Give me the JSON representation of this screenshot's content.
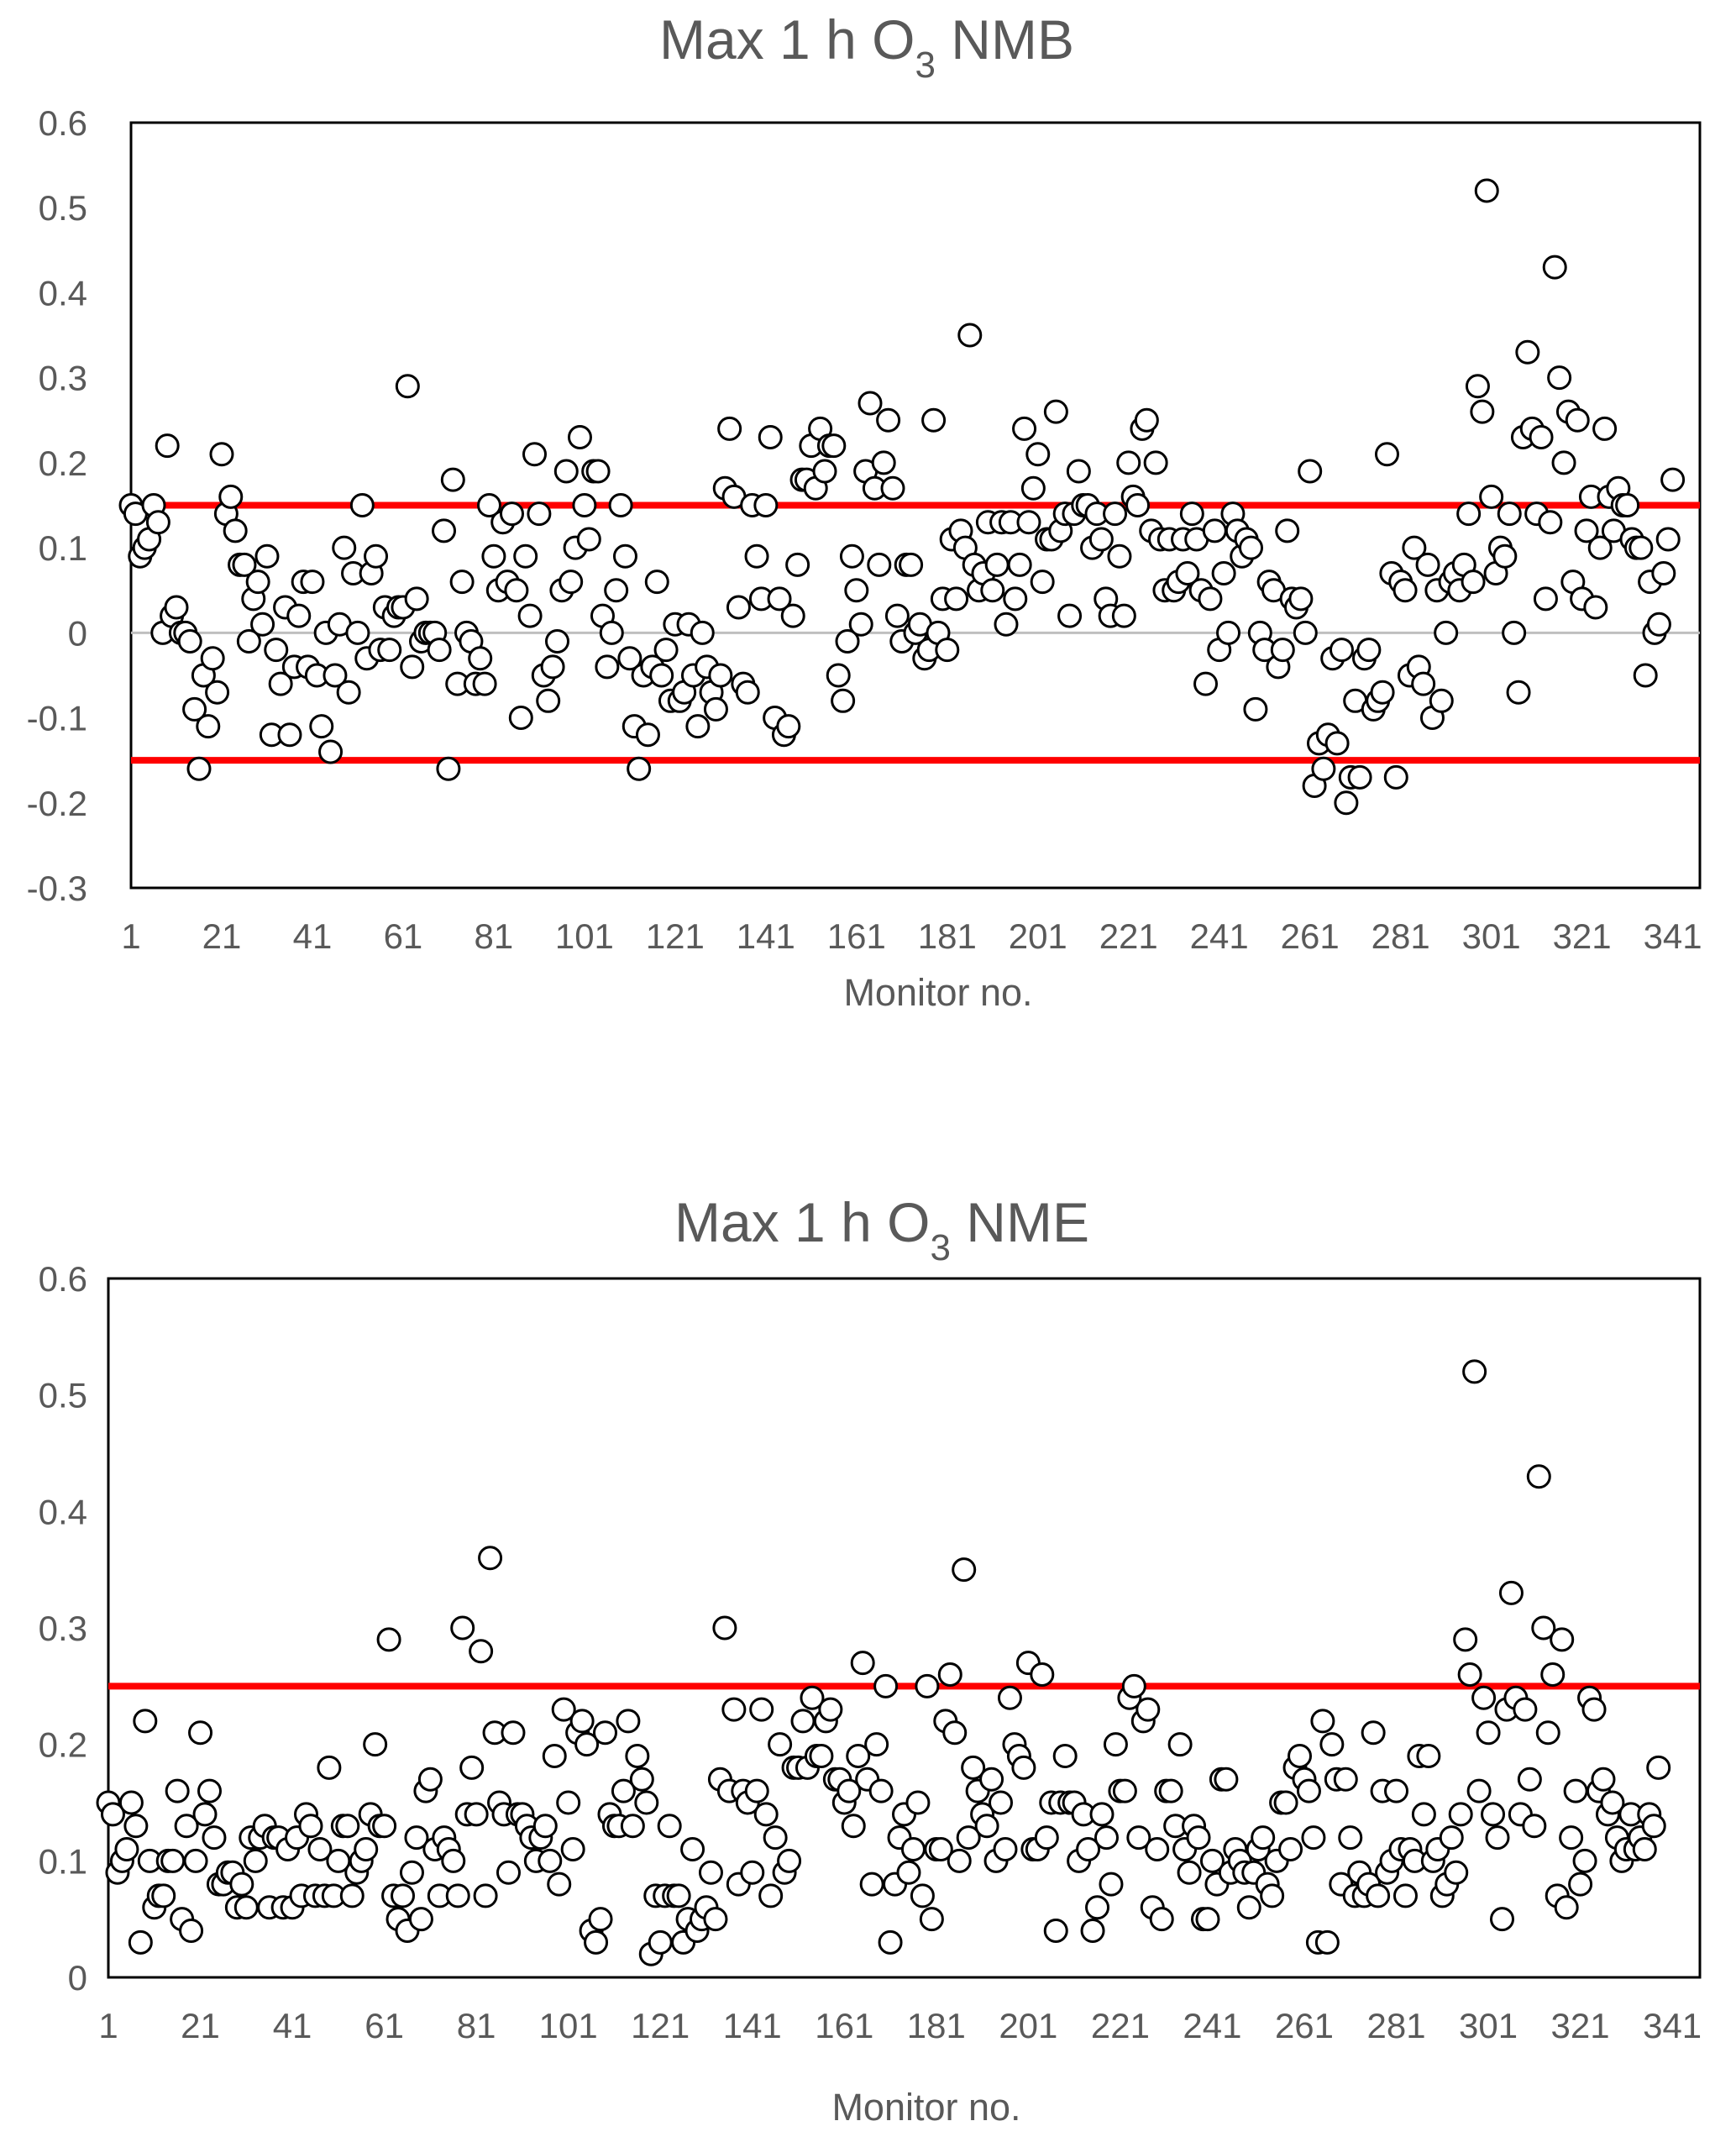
{
  "chart_data": [
    {
      "type": "scatter",
      "title": "Max 1 h O",
      "title_subscript": "3",
      "title_suffix": " NMB",
      "xlabel": "Monitor no.",
      "ylabel": "",
      "xlim": [
        1,
        347
      ],
      "ylim": [
        -0.3,
        0.6
      ],
      "x_ticks": [
        "1",
        "21",
        "41",
        "61",
        "81",
        "101",
        "121",
        "141",
        "161",
        "181",
        "201",
        "221",
        "241",
        "261",
        "281",
        "301",
        "321",
        "341"
      ],
      "y_ticks": [
        "-0.3",
        "-0.2",
        "-0.1",
        "0",
        "0.1",
        "0.2",
        "0.3",
        "0.4",
        "0.5",
        "0.6"
      ],
      "reference_lines": [
        0.15,
        -0.15
      ],
      "reference_color": "#ff0000",
      "zero_line": true,
      "grid": false,
      "marker": "open-circle",
      "y": [
        0.15,
        0.14,
        0.09,
        0.1,
        0.11,
        0.15,
        0.13,
        0.0,
        0.22,
        0.02,
        0.03,
        0.0,
        0.0,
        -0.01,
        -0.09,
        -0.16,
        -0.05,
        -0.11,
        -0.03,
        -0.07,
        0.21,
        0.14,
        0.16,
        0.12,
        0.08,
        0.08,
        -0.01,
        0.04,
        0.06,
        0.01,
        0.09,
        -0.12,
        -0.02,
        -0.06,
        0.03,
        -0.12,
        -0.04,
        0.02,
        0.06,
        -0.04,
        0.06,
        -0.05,
        -0.11,
        0.0,
        -0.14,
        -0.05,
        0.01,
        0.1,
        -0.07,
        0.07,
        0.0,
        0.15,
        -0.03,
        0.07,
        0.09,
        -0.02,
        0.03,
        -0.02,
        0.02,
        0.03,
        0.03,
        0.29,
        -0.04,
        0.04,
        -0.01,
        0.0,
        0.0,
        0.0,
        -0.02,
        0.12,
        -0.16,
        0.18,
        -0.06,
        0.06,
        0.0,
        -0.01,
        -0.06,
        -0.03,
        -0.06,
        0.15,
        0.09,
        0.05,
        0.13,
        0.06,
        0.14,
        0.05,
        -0.1,
        0.09,
        0.02,
        0.21,
        0.14,
        -0.05,
        -0.08,
        -0.04,
        -0.01,
        0.05,
        0.19,
        0.06,
        0.1,
        0.23,
        0.15,
        0.11,
        0.19,
        0.19,
        0.02,
        -0.04,
        0.0,
        0.05,
        0.15,
        0.09,
        -0.03,
        -0.11,
        -0.16,
        -0.05,
        -0.12,
        -0.04,
        0.06,
        -0.05,
        -0.02,
        -0.08,
        0.01,
        -0.08,
        -0.07,
        0.01,
        -0.05,
        -0.11,
        0.0,
        -0.04,
        -0.07,
        -0.09,
        -0.05,
        0.17,
        0.24,
        0.16,
        0.03,
        -0.06,
        -0.07,
        0.15,
        0.09,
        0.04,
        0.15,
        0.23,
        -0.1,
        0.04,
        -0.12,
        -0.11,
        0.02,
        0.08,
        0.18,
        0.18,
        0.22,
        0.17,
        0.24,
        0.19,
        0.22,
        0.22,
        -0.05,
        -0.08,
        -0.01,
        0.09,
        0.05,
        0.01,
        0.19,
        0.27,
        0.17,
        0.08,
        0.2,
        0.25,
        0.17,
        0.02,
        -0.01,
        0.08,
        0.08,
        0.0,
        0.01,
        -0.03,
        -0.02,
        0.25,
        0.0,
        0.04,
        -0.02,
        0.11,
        0.04,
        0.12,
        0.1,
        0.35,
        0.08,
        0.05,
        0.07,
        0.13,
        0.05,
        0.08,
        0.13,
        0.01,
        0.13,
        0.04,
        0.08,
        0.24,
        0.13,
        0.17,
        0.21,
        0.06,
        0.11,
        0.11,
        0.26,
        0.12,
        0.14,
        0.02,
        0.14,
        0.19,
        0.15,
        0.15,
        0.1,
        0.14,
        0.11,
        0.04,
        0.02,
        0.14,
        0.09,
        0.02,
        0.2,
        0.16,
        0.15,
        0.24,
        0.25,
        0.12,
        0.2,
        0.11,
        0.05,
        0.11,
        0.05,
        0.06,
        0.11,
        0.07,
        0.14,
        0.11,
        0.05,
        -0.06,
        0.04,
        0.12,
        -0.02,
        0.07,
        0.0,
        0.14,
        0.12,
        0.09,
        0.11,
        0.1,
        -0.09,
        0.0,
        -0.02,
        0.06,
        0.05,
        -0.04,
        -0.02,
        0.12,
        0.04,
        0.03,
        0.04,
        0.0,
        0.19,
        -0.18,
        -0.13,
        -0.16,
        -0.12,
        -0.03,
        -0.13,
        -0.02,
        -0.2,
        -0.17,
        -0.08,
        -0.17,
        -0.03,
        -0.02,
        -0.09,
        -0.08,
        -0.07,
        0.21,
        0.07,
        -0.17,
        0.06,
        0.05,
        -0.05,
        0.1,
        -0.04,
        -0.06,
        0.08,
        -0.1,
        0.05,
        -0.08,
        0.0,
        0.06,
        0.07,
        0.05,
        0.08,
        0.14,
        0.06,
        0.29,
        0.26,
        0.52,
        0.16,
        0.07,
        0.1,
        0.09,
        0.14,
        0.0,
        -0.07,
        0.23,
        0.33,
        0.24,
        0.14,
        0.23,
        0.04,
        0.13,
        0.43,
        0.3,
        0.2,
        0.26,
        0.06,
        0.25,
        0.04,
        0.12,
        0.16,
        0.03,
        0.1,
        0.24,
        0.16,
        0.12,
        0.17,
        0.15,
        0.15,
        0.11,
        0.1,
        0.1,
        -0.05,
        0.06,
        0.0,
        0.01,
        0.07,
        0.11,
        0.18
      ]
    },
    {
      "type": "scatter",
      "title": "Max 1 h O",
      "title_subscript": "3",
      "title_suffix": " NME",
      "xlabel": "Monitor no.",
      "ylabel": "",
      "xlim": [
        1,
        347
      ],
      "ylim": [
        0,
        0.6
      ],
      "x_ticks": [
        "1",
        "21",
        "41",
        "61",
        "81",
        "101",
        "121",
        "141",
        "161",
        "181",
        "201",
        "221",
        "241",
        "261",
        "281",
        "301",
        "321",
        "341"
      ],
      "y_ticks": [
        "0",
        "0.1",
        "0.2",
        "0.3",
        "0.4",
        "0.5",
        "0.6"
      ],
      "reference_lines": [
        0.25
      ],
      "reference_color": "#ff0000",
      "zero_line": false,
      "grid": false,
      "marker": "open-circle",
      "y": [
        0.15,
        0.14,
        0.09,
        0.1,
        0.11,
        0.15,
        0.13,
        0.03,
        0.22,
        0.1,
        0.06,
        0.07,
        0.07,
        0.1,
        0.1,
        0.16,
        0.05,
        0.13,
        0.04,
        0.1,
        0.21,
        0.14,
        0.16,
        0.12,
        0.08,
        0.08,
        0.09,
        0.09,
        0.06,
        0.08,
        0.06,
        0.12,
        0.1,
        0.12,
        0.13,
        0.06,
        0.12,
        0.12,
        0.06,
        0.11,
        0.06,
        0.12,
        0.07,
        0.14,
        0.13,
        0.07,
        0.11,
        0.07,
        0.18,
        0.07,
        0.1,
        0.13,
        0.13,
        0.07,
        0.09,
        0.1,
        0.11,
        0.14,
        0.2,
        0.13,
        0.13,
        0.29,
        0.07,
        0.05,
        0.07,
        0.04,
        0.09,
        0.12,
        0.05,
        0.16,
        0.17,
        0.11,
        0.07,
        0.12,
        0.11,
        0.1,
        0.07,
        0.3,
        0.14,
        0.18,
        0.14,
        0.28,
        0.07,
        0.36,
        0.21,
        0.15,
        0.14,
        0.09,
        0.21,
        0.14,
        0.14,
        0.13,
        0.12,
        0.1,
        0.12,
        0.13,
        0.1,
        0.19,
        0.08,
        0.23,
        0.15,
        0.11,
        0.21,
        0.22,
        0.2,
        0.04,
        0.03,
        0.05,
        0.21,
        0.14,
        0.13,
        0.13,
        0.16,
        0.22,
        0.13,
        0.19,
        0.17,
        0.15,
        0.02,
        0.07,
        0.03,
        0.07,
        0.13,
        0.07,
        0.07,
        0.03,
        0.05,
        0.11,
        0.04,
        0.05,
        0.06,
        0.09,
        0.05,
        0.17,
        0.3,
        0.16,
        0.23,
        0.08,
        0.16,
        0.15,
        0.09,
        0.16,
        0.23,
        0.14,
        0.07,
        0.12,
        0.2,
        0.09,
        0.1,
        0.18,
        0.18,
        0.22,
        0.18,
        0.24,
        0.19,
        0.19,
        0.22,
        0.23,
        0.17,
        0.17,
        0.15,
        0.16,
        0.13,
        0.19,
        0.27,
        0.17,
        0.08,
        0.2,
        0.16,
        0.25,
        0.03,
        0.08,
        0.12,
        0.14,
        0.09,
        0.11,
        0.15,
        0.07,
        0.25,
        0.05,
        0.11,
        0.11,
        0.22,
        0.26,
        0.21,
        0.1,
        0.35,
        0.12,
        0.18,
        0.16,
        0.14,
        0.13,
        0.17,
        0.1,
        0.15,
        0.11,
        0.24,
        0.2,
        0.19,
        0.18,
        0.27,
        0.11,
        0.11,
        0.26,
        0.12,
        0.15,
        0.04,
        0.15,
        0.19,
        0.15,
        0.15,
        0.1,
        0.14,
        0.11,
        0.04,
        0.06,
        0.14,
        0.12,
        0.08,
        0.2,
        0.16,
        0.16,
        0.24,
        0.25,
        0.12,
        0.22,
        0.23,
        0.06,
        0.11,
        0.05,
        0.16,
        0.16,
        0.13,
        0.2,
        0.11,
        0.09,
        0.13,
        0.12,
        0.05,
        0.05,
        0.1,
        0.08,
        0.17,
        0.17,
        0.09,
        0.11,
        0.1,
        0.09,
        0.06,
        0.09,
        0.11,
        0.12,
        0.08,
        0.07,
        0.1,
        0.15,
        0.15,
        0.11,
        0.18,
        0.19,
        0.17,
        0.16,
        0.12,
        0.03,
        0.22,
        0.03,
        0.2,
        0.17,
        0.08,
        0.17,
        0.12,
        0.07,
        0.09,
        0.07,
        0.08,
        0.21,
        0.07,
        0.16,
        0.09,
        0.1,
        0.16,
        0.11,
        0.07,
        0.11,
        0.1,
        0.19,
        0.14,
        0.19,
        0.1,
        0.11,
        0.07,
        0.08,
        0.12,
        0.09,
        0.14,
        0.29,
        0.26,
        0.52,
        0.16,
        0.24,
        0.21,
        0.14,
        0.12,
        0.05,
        0.23,
        0.33,
        0.24,
        0.14,
        0.23,
        0.17,
        0.13,
        0.43,
        0.3,
        0.21,
        0.26,
        0.07,
        0.29,
        0.06,
        0.12,
        0.16,
        0.08,
        0.1,
        0.24,
        0.23,
        0.16,
        0.17,
        0.14,
        0.15,
        0.12,
        0.1,
        0.11,
        0.14,
        0.11,
        0.12,
        0.11,
        0.14,
        0.13,
        0.18
      ]
    }
  ]
}
